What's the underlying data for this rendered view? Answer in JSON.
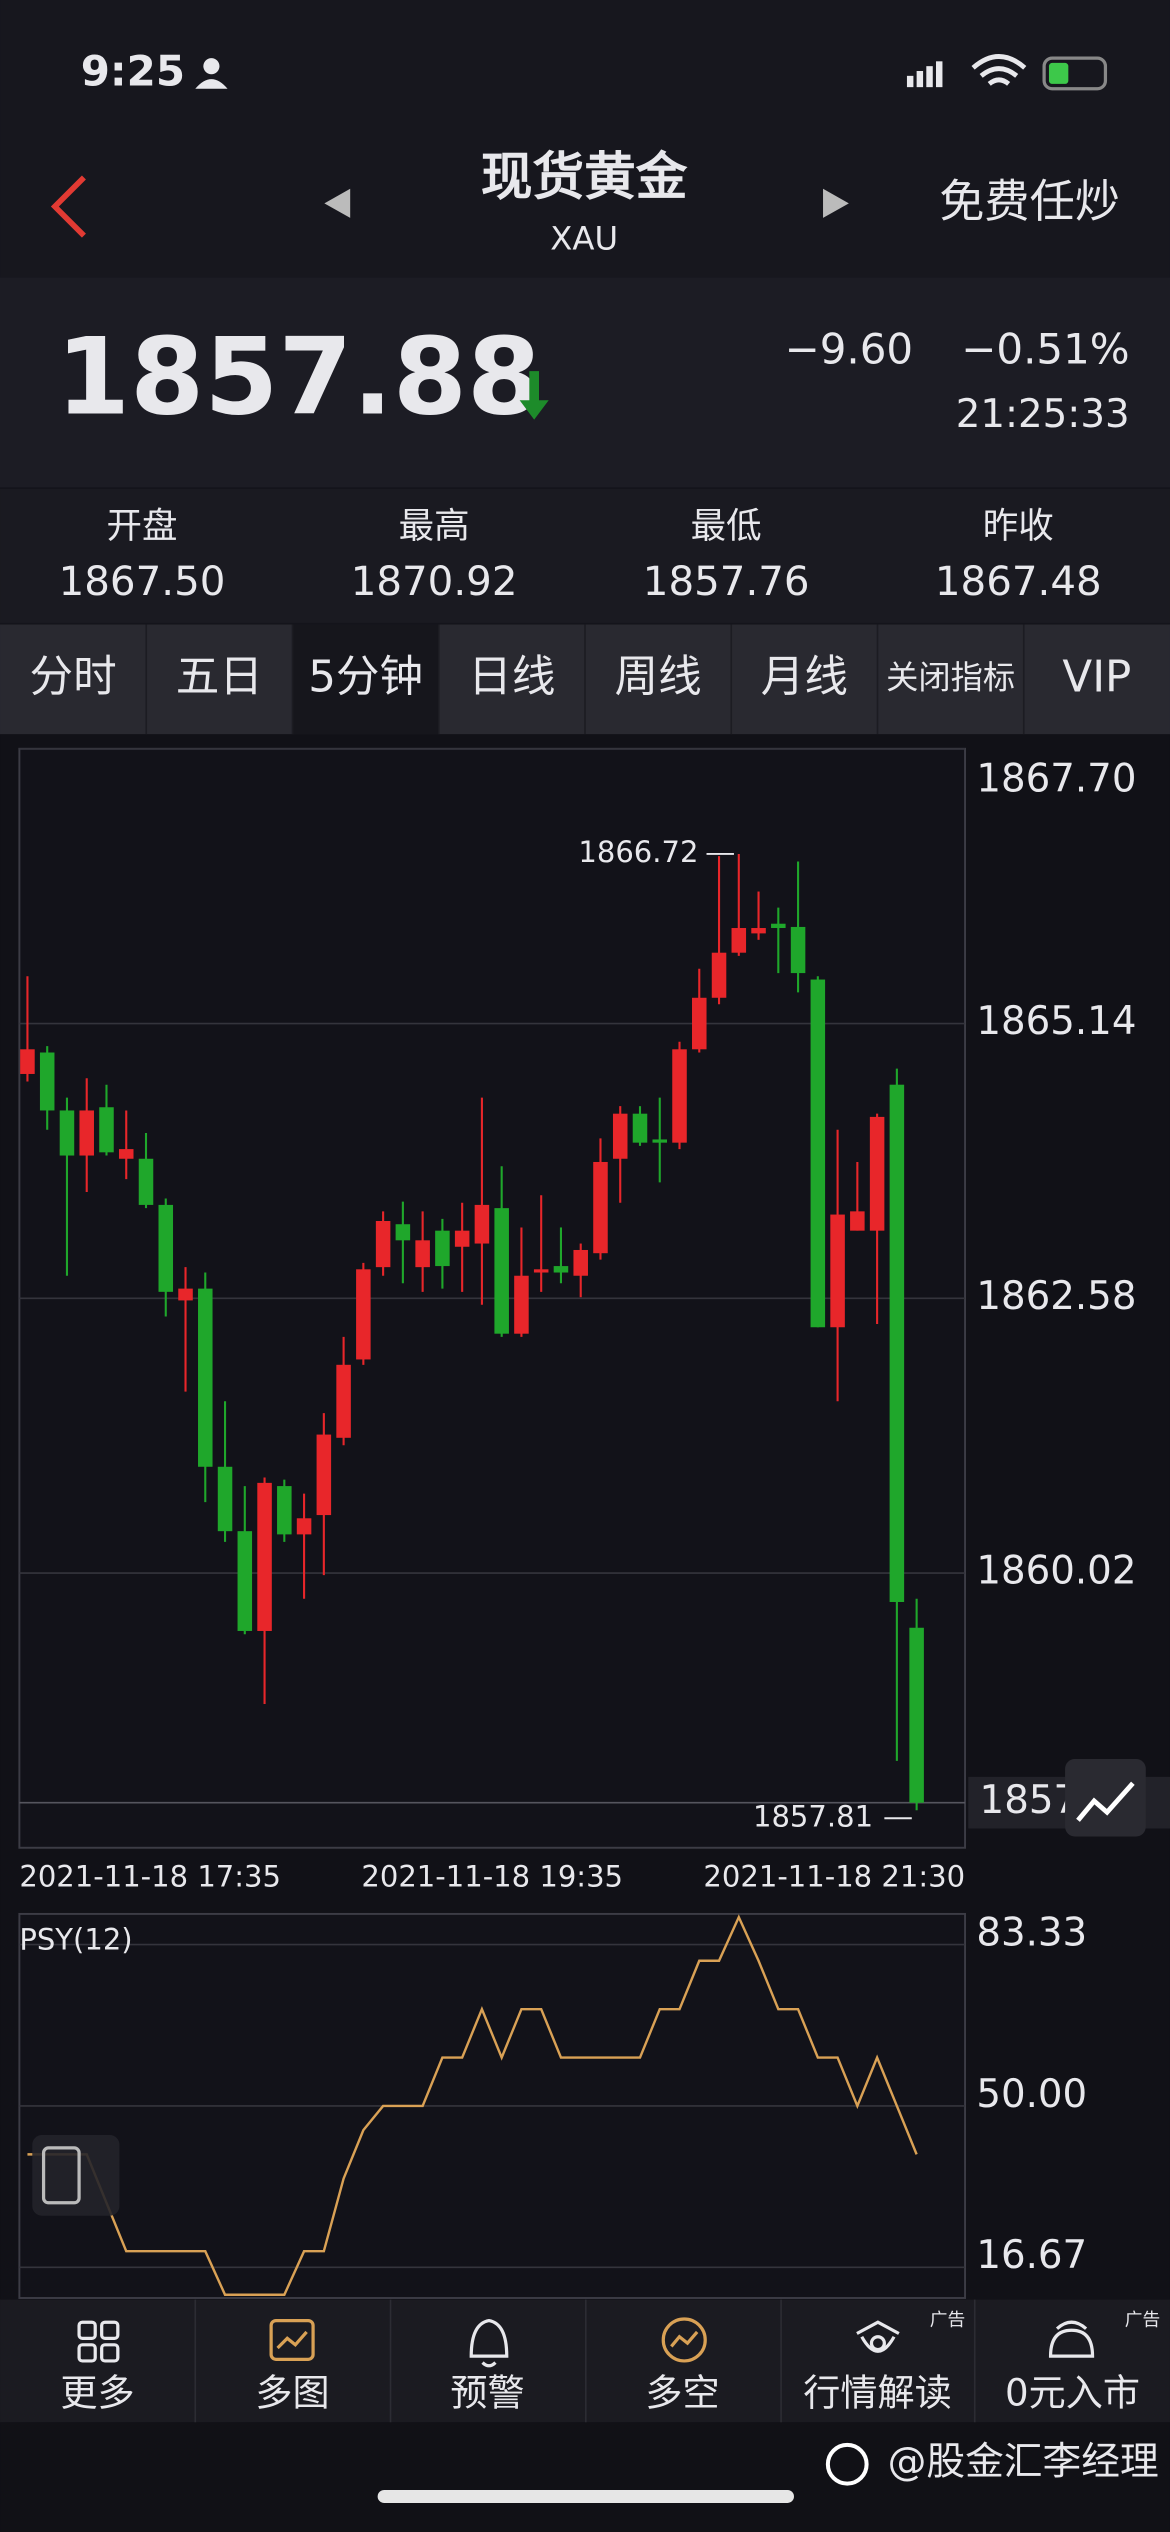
{
  "status_bar": {
    "time": "9:25"
  },
  "header": {
    "title": "现货黄金",
    "subtitle": "XAU",
    "action": "免费任炒"
  },
  "quote": {
    "price": "1857.88",
    "change": "−9.60",
    "change_pct": "−0.51%",
    "time": "21:25:33"
  },
  "stats": [
    {
      "label": "开盘",
      "value": "1867.50"
    },
    {
      "label": "最高",
      "value": "1870.92"
    },
    {
      "label": "最低",
      "value": "1857.76"
    },
    {
      "label": "昨收",
      "value": "1867.48"
    }
  ],
  "tabs": {
    "items": [
      "分时",
      "五日",
      "5分钟",
      "日线",
      "周线",
      "月线",
      "关闭指标",
      "VIP"
    ],
    "active": 2
  },
  "chart_data": [
    {
      "type": "candlestick",
      "x_labels": [
        "2021-11-18 17:35",
        "2021-11-18 19:35",
        "2021-11-18 21:30"
      ],
      "open": [
        1864.67,
        1864.87,
        1864.33,
        1863.91,
        1864.36,
        1863.88,
        1863.88,
        1863.45,
        1862.56,
        1862.67,
        1861.01,
        1860.41,
        1859.48,
        1860.83,
        1860.38,
        1860.56,
        1861.28,
        1862.01,
        1862.87,
        1863.27,
        1862.87,
        1863.21,
        1863.06,
        1863.09,
        1863.42,
        1862.25,
        1862.82,
        1862.88,
        1862.79,
        1863.0,
        1863.88,
        1864.3,
        1864.06,
        1864.03,
        1864.9,
        1865.38,
        1865.8,
        1865.98,
        1866.07,
        1866.04,
        1865.55,
        1862.31,
        1863.21,
        1863.21,
        1864.57,
        1859.51
      ],
      "high": [
        1865.58,
        1864.93,
        1864.45,
        1864.63,
        1864.57,
        1864.33,
        1864.12,
        1863.51,
        1862.87,
        1862.82,
        1861.62,
        1860.83,
        1860.91,
        1860.89,
        1860.76,
        1861.51,
        1862.22,
        1862.91,
        1863.39,
        1863.48,
        1863.39,
        1863.32,
        1863.47,
        1864.45,
        1863.81,
        1863.24,
        1863.54,
        1863.24,
        1863.09,
        1864.07,
        1864.37,
        1864.37,
        1864.45,
        1864.97,
        1865.65,
        1866.7,
        1866.72,
        1866.37,
        1866.22,
        1866.65,
        1865.58,
        1864.15,
        1863.85,
        1864.3,
        1864.72,
        1859.78
      ],
      "low": [
        1864.6,
        1864.15,
        1862.79,
        1863.57,
        1863.91,
        1863.69,
        1863.42,
        1862.41,
        1861.71,
        1860.68,
        1860.31,
        1859.45,
        1858.8,
        1860.31,
        1859.78,
        1860.0,
        1861.21,
        1861.96,
        1862.79,
        1862.72,
        1862.64,
        1862.67,
        1862.64,
        1862.52,
        1862.22,
        1862.22,
        1862.64,
        1862.72,
        1862.59,
        1862.94,
        1863.47,
        1864.0,
        1863.66,
        1863.97,
        1864.87,
        1865.32,
        1865.77,
        1865.92,
        1865.61,
        1865.43,
        1862.31,
        1861.62,
        1863.21,
        1862.34,
        1858.27,
        1857.81
      ],
      "close": [
        1864.9,
        1864.33,
        1863.91,
        1864.33,
        1863.94,
        1863.97,
        1863.45,
        1862.64,
        1862.67,
        1861.01,
        1860.41,
        1859.48,
        1860.86,
        1860.38,
        1860.53,
        1861.31,
        1861.96,
        1862.85,
        1863.3,
        1863.12,
        1863.12,
        1862.88,
        1863.21,
        1863.45,
        1862.25,
        1862.79,
        1862.85,
        1862.82,
        1863.03,
        1863.85,
        1864.3,
        1864.03,
        1864.03,
        1864.9,
        1865.38,
        1865.8,
        1866.03,
        1866.03,
        1866.03,
        1865.61,
        1862.31,
        1863.36,
        1863.39,
        1864.27,
        1859.75,
        1857.88
      ],
      "up_color": "#e8262a",
      "down_color": "#1fa72b",
      "ylim": [
        1857.46,
        1867.7
      ],
      "yticks": [
        {
          "value": 1867.7,
          "label": "1867.70"
        },
        1865.14,
        1862.58,
        1860.02
      ],
      "grid": true,
      "high_label": 1866.72,
      "low_label": 1857.81,
      "last_price": 1857.88
    },
    {
      "type": "line",
      "title": "PSY(12)",
      "values": [
        40,
        40,
        40,
        40,
        30,
        20,
        20,
        20,
        20,
        20,
        11,
        11,
        11,
        11,
        20,
        20,
        35,
        45,
        50,
        50,
        50,
        60,
        60,
        70,
        60,
        70,
        70,
        60,
        60,
        60,
        60,
        60,
        70,
        70,
        80,
        80,
        89,
        80,
        70,
        70,
        60,
        60,
        50,
        60,
        50,
        40
      ],
      "color": "#d9a155",
      "ylim": [
        10.33,
        89.67
      ],
      "yticks": [
        83.33,
        {
          "value": 50,
          "label": "50.00"
        },
        16.67
      ],
      "grid": true
    }
  ],
  "nav": {
    "items": [
      "更多",
      "多图",
      "预警",
      "多空",
      "行情解读",
      "0元入市"
    ],
    "ad_tag": "广告"
  },
  "watermark": "@股金汇李经理"
}
